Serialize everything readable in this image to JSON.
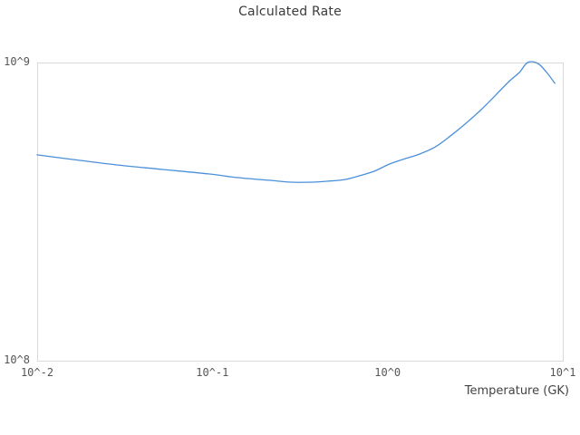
{
  "colors": {
    "background": "#ffffff",
    "title": "#3b3b3b",
    "tick": "#555555",
    "axis_label": "#444444",
    "frame": "#d9d9d9",
    "line": "#4a90d9"
  },
  "chart_data": {
    "type": "line",
    "title": "Calculated Rate",
    "xlabel": "Temperature (GK)",
    "ylabel": "",
    "xscale": "log",
    "yscale": "log",
    "xlim": [
      0.01,
      10
    ],
    "ylim": [
      100000000.0,
      1000000000.0
    ],
    "grid": false,
    "legend": false,
    "x_ticks": [
      {
        "label": "10^-2",
        "value": 0.01
      },
      {
        "label": "10^-1",
        "value": 0.1
      },
      {
        "label": "10^0",
        "value": 1
      },
      {
        "label": "10^1",
        "value": 10
      }
    ],
    "y_ticks": [
      {
        "label": "10^8",
        "value": 100000000.0
      },
      {
        "label": "10^9",
        "value": 1000000000.0
      }
    ],
    "series": [
      {
        "name": "Calculated Rate",
        "x": [
          0.01,
          0.016,
          0.029,
          0.052,
          0.095,
          0.14,
          0.21,
          0.28,
          0.37,
          0.46,
          0.57,
          0.69,
          0.84,
          1.03,
          1.26,
          1.52,
          1.87,
          2.29,
          2.76,
          3.38,
          4.14,
          5.0,
          5.65,
          6.3,
          7.2,
          8.1,
          9.0
        ],
        "y": [
          490000000.0,
          473000000.0,
          453000000.0,
          438000000.0,
          423000000.0,
          411000000.0,
          403000000.0,
          397000000.0,
          397000000.0,
          400000000.0,
          405000000.0,
          417000000.0,
          432000000.0,
          457000000.0,
          476000000.0,
          493000000.0,
          521000000.0,
          568000000.0,
          621000000.0,
          690000000.0,
          778000000.0,
          870000000.0,
          926000000.0,
          1000000000.0,
          993000000.0,
          926000000.0,
          852000000.0
        ]
      }
    ]
  }
}
